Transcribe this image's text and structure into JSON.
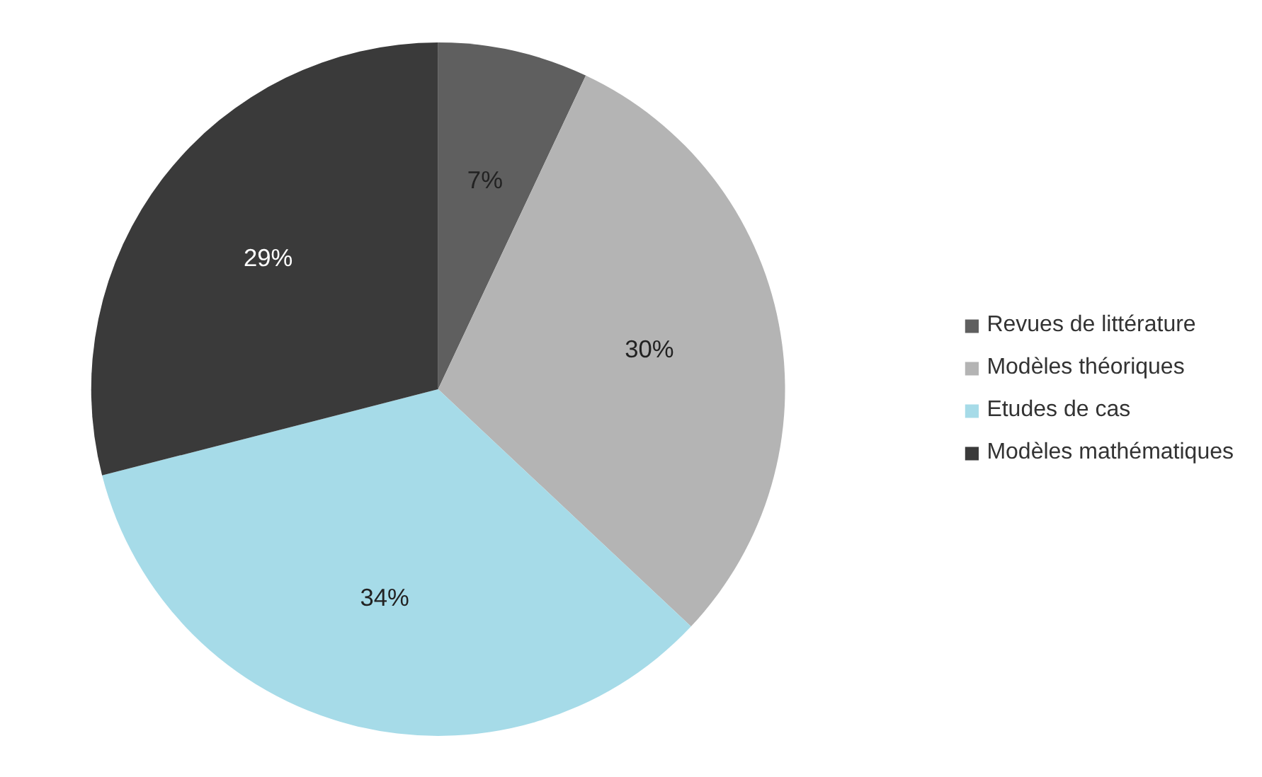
{
  "chart_data": {
    "type": "pie",
    "categories": [
      "Revues de littérature",
      "Modèles théoriques",
      "Etudes de cas",
      "Modèles mathématiques"
    ],
    "values": [
      7,
      30,
      34,
      29
    ],
    "colors": [
      "#5f5f5f",
      "#b4b4b4",
      "#a6dbe8",
      "#3a3a3a"
    ],
    "value_labels": [
      "7%",
      "30%",
      "34%",
      "29%"
    ],
    "legend": "right"
  }
}
